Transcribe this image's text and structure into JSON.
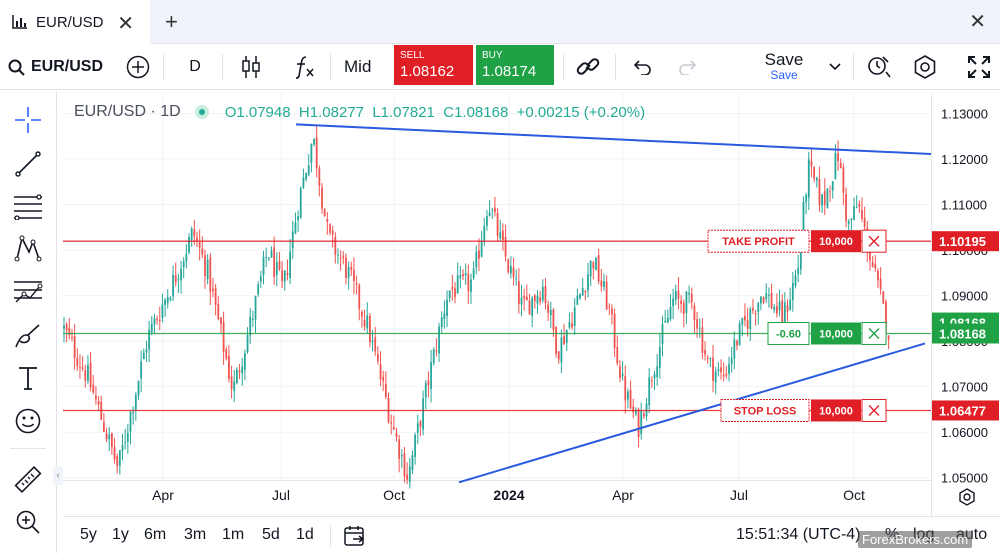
{
  "tab": {
    "title": "EUR/USD",
    "close": "✕",
    "new": "+",
    "window_close": "✕"
  },
  "toolbar": {
    "symbol": "EUR/USD",
    "interval": "D",
    "price_mode": "Mid",
    "sell_label": "SELL",
    "sell_price": "1.08162",
    "buy_label": "BUY",
    "buy_price": "1.08174",
    "save_label": "Save",
    "save_sub": "Save"
  },
  "legend": {
    "symbol": "EUR/USD · 1D",
    "open": "O1.07948",
    "high": "H1.08277",
    "low": "L1.07821",
    "close": "C1.08168",
    "change": "+0.00215 (+0.20%)"
  },
  "chart_data": {
    "type": "candlestick",
    "interval": "1D",
    "x_labels": [
      "Apr",
      "Jul",
      "Oct",
      "2024",
      "Apr",
      "Jul",
      "Oct"
    ],
    "y_ticks": [
      "1.13000",
      "1.12000",
      "1.11000",
      "1.10000",
      "1.09000",
      "1.08000",
      "1.07000",
      "1.06000",
      "1.05000"
    ],
    "ylim": [
      1.0495,
      1.1345
    ],
    "current_price": 1.08168,
    "path_anchors": [
      [
        0,
        1.083
      ],
      [
        25,
        1.072
      ],
      [
        55,
        1.052
      ],
      [
        85,
        1.081
      ],
      [
        110,
        1.093
      ],
      [
        130,
        1.104
      ],
      [
        145,
        1.095
      ],
      [
        170,
        1.069
      ],
      [
        190,
        1.086
      ],
      [
        205,
        1.1
      ],
      [
        220,
        1.091
      ],
      [
        235,
        1.11
      ],
      [
        250,
        1.125
      ],
      [
        265,
        1.103
      ],
      [
        285,
        1.095
      ],
      [
        305,
        1.083
      ],
      [
        330,
        1.061
      ],
      [
        345,
        1.05
      ],
      [
        365,
        1.071
      ],
      [
        385,
        1.091
      ],
      [
        410,
        1.093
      ],
      [
        425,
        1.111
      ],
      [
        440,
        1.1
      ],
      [
        460,
        1.087
      ],
      [
        480,
        1.092
      ],
      [
        495,
        1.078
      ],
      [
        510,
        1.086
      ],
      [
        530,
        1.098
      ],
      [
        545,
        1.088
      ],
      [
        560,
        1.07
      ],
      [
        575,
        1.061
      ],
      [
        590,
        1.074
      ],
      [
        610,
        1.089
      ],
      [
        630,
        1.088
      ],
      [
        645,
        1.075
      ],
      [
        660,
        1.072
      ],
      [
        675,
        1.081
      ],
      [
        700,
        1.091
      ],
      [
        720,
        1.085
      ],
      [
        735,
        1.096
      ],
      [
        745,
        1.118
      ],
      [
        760,
        1.11
      ],
      [
        775,
        1.121
      ],
      [
        785,
        1.105
      ],
      [
        795,
        1.11
      ],
      [
        810,
        1.096
      ],
      [
        820,
        1.087
      ],
      [
        827,
        1.081
      ]
    ],
    "trendlines": [
      {
        "from": [
          "Jul 2023",
          1.1276
        ],
        "to": [
          "Oct 2024",
          1.1211
        ],
        "color": "#2a5ae0"
      },
      {
        "from": [
          "Nov 2023",
          1.049
        ],
        "to": [
          "Oct 2024",
          1.0795
        ],
        "color": "#2a5ae0"
      }
    ],
    "orders": [
      {
        "label": "TAKE PROFIT",
        "qty": "10,000",
        "price": 1.10195,
        "price_label": "1.10195",
        "color": "#e01e25"
      },
      {
        "label": "-0.60",
        "qty": "10,000",
        "price": 1.08168,
        "price_label": "1.08168",
        "color": "#1fa145"
      },
      {
        "label": "STOP LOSS",
        "qty": "10,000",
        "price": 1.06477,
        "price_label": "1.06477",
        "color": "#e01e25"
      }
    ],
    "extra_axis_label": "1.08168",
    "up_color": "#26a69a",
    "down_color": "#ef5350"
  },
  "ranges": [
    "5y",
    "1y",
    "6m",
    "3m",
    "1m",
    "5d",
    "1d"
  ],
  "bottom": {
    "clock": "15:51:34 (UTC-4)",
    "pct": "%",
    "log": "log",
    "auto": "auto"
  },
  "watermark": "ForexBrokers.com"
}
